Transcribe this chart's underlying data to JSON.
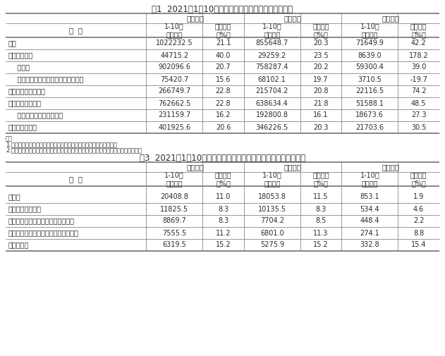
{
  "title1": "表1  2021年1－10月份规模以上工业企业主要财务指标",
  "title2": "表3  2021年1－10月份规模以上工业企业主要财务指标（分行业）",
  "note1": "注：",
  "note2": "1.经济类型分组之间存在交叉，故各经济类型企业数据之和大于总计。",
  "note3": "2.本表部分指标存在总计不等于分项之和情况，是数据四舍五入所致，未作机械调整。",
  "table1_data": [
    [
      "总计",
      "1022232.5",
      "21.1",
      "855648.7",
      "20.3",
      "71649.9",
      "42.2"
    ],
    [
      "其中：采矿业",
      "44715.2",
      "40.0",
      "29259.2",
      "23.5",
      "8639.0",
      "178.2"
    ],
    [
      "    制造业",
      "902096.6",
      "20.7",
      "758287.4",
      "20.2",
      "59300.4",
      "39.0"
    ],
    [
      "    电力、热力、燃气及水生产和供应业",
      "75420.7",
      "15.6",
      "68102.1",
      "19.7",
      "3710.5",
      "-19.7"
    ],
    [
      "其中：国有控股企业",
      "266749.7",
      "22.8",
      "215704.2",
      "20.8",
      "22116.5",
      "74.2"
    ],
    [
      "其中：股份制企业",
      "762662.5",
      "22.8",
      "638634.4",
      "21.8",
      "51588.1",
      "48.5"
    ],
    [
      "    外商及港澳台商投资企业",
      "231159.7",
      "16.2",
      "192800.8",
      "16.1",
      "18673.6",
      "27.3"
    ],
    [
      "其中：私营企业",
      "401925.6",
      "20.6",
      "346226.5",
      "20.3",
      "21703.6",
      "30.5"
    ]
  ],
  "table2_data": [
    [
      "纺织业",
      "20408.8",
      "11.0",
      "18053.8",
      "11.5",
      "853.1",
      "1.9"
    ],
    [
      "纺织服装、服饰业",
      "11825.5",
      "8.3",
      "10135.5",
      "8.3",
      "534.4",
      "4.6"
    ],
    [
      "皮革、毛皮、羽毛及其制品和制鞋业",
      "8869.7",
      "8.3",
      "7704.2",
      "8.5",
      "448.4",
      "2.2"
    ],
    [
      "木材加工和木、竹、藤、棕、草制品业",
      "7555.5",
      "11.2",
      "6801.0",
      "11.3",
      "274.1",
      "8.8"
    ],
    [
      "家具制造业",
      "6319.5",
      "15.2",
      "5275.9",
      "15.2",
      "332.8",
      "15.4"
    ]
  ],
  "bg_color": "#ffffff",
  "text_color": "#2a2a2a",
  "line_color": "#888888",
  "title_fontsize": 8.5,
  "body_fontsize": 7.0,
  "note_fontsize": 6.0
}
